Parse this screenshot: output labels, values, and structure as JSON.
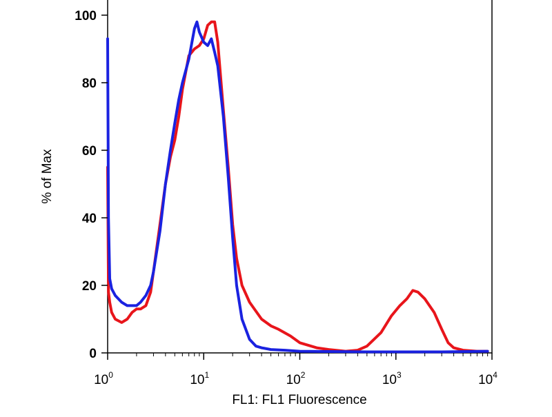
{
  "chart_data": {
    "type": "line",
    "title": "",
    "xlabel": "FL1: FL1 Fluorescence",
    "ylabel": "% of Max",
    "xscale": "log",
    "xlim": [
      1,
      10000
    ],
    "ylim": [
      0,
      100
    ],
    "grid": false,
    "legend": "none",
    "x_ticks": [
      {
        "base": "10",
        "exp": "0",
        "value": 1
      },
      {
        "base": "10",
        "exp": "1",
        "value": 10
      },
      {
        "base": "10",
        "exp": "2",
        "value": 100
      },
      {
        "base": "10",
        "exp": "3",
        "value": 1000
      },
      {
        "base": "10",
        "exp": "4",
        "value": 10000
      }
    ],
    "y_ticks": [
      "0",
      "20",
      "40",
      "60",
      "80",
      "100"
    ],
    "series": [
      {
        "color": "#e8151b",
        "x": [
          1,
          1.02,
          1.05,
          1.1,
          1.2,
          1.4,
          1.6,
          1.8,
          2.0,
          2.2,
          2.5,
          2.8,
          3.0,
          3.5,
          4.0,
          4.5,
          5.0,
          5.5,
          6.0,
          7.0,
          8.0,
          9.0,
          10.0,
          11.0,
          12.0,
          13.0,
          14.0,
          16.0,
          18.0,
          20.0,
          22.0,
          25.0,
          30.0,
          40.0,
          50.0,
          60.0,
          80.0,
          100.0,
          150.0,
          200.0,
          300.0,
          400.0,
          500.0,
          700.0,
          900.0,
          1100.0,
          1300.0,
          1500.0,
          1700.0,
          2000.0,
          2500.0,
          3000.0,
          3500.0,
          4000.0,
          5000.0,
          7000.0,
          9000.0
        ],
        "values": [
          55,
          18,
          15,
          12,
          10,
          9,
          10,
          12,
          13,
          13,
          14,
          18,
          24,
          38,
          50,
          58,
          63,
          70,
          78,
          88,
          90,
          91,
          93,
          97,
          98,
          98,
          92,
          72,
          55,
          38,
          28,
          20,
          15,
          10,
          8,
          7,
          5,
          3,
          1.5,
          1,
          0.5,
          0.8,
          2,
          6,
          11,
          14,
          16,
          18.5,
          18,
          16,
          12,
          7,
          3,
          1.5,
          0.8,
          0.5,
          0.5
        ]
      },
      {
        "color": "#1a22e0",
        "x": [
          1,
          1.02,
          1.05,
          1.1,
          1.2,
          1.4,
          1.6,
          1.8,
          2.0,
          2.2,
          2.5,
          2.8,
          3.0,
          3.5,
          4.0,
          4.5,
          5.0,
          5.5,
          6.0,
          7.0,
          8.0,
          8.5,
          9.0,
          10.0,
          11.0,
          12.0,
          13.0,
          14.0,
          16.0,
          18.0,
          20.0,
          22.0,
          25.0,
          30.0,
          35.0,
          40.0,
          50.0,
          70.0,
          100.0,
          200.0,
          500.0,
          1000.0,
          3000.0,
          9000.0
        ],
        "values": [
          93,
          40,
          22,
          19,
          17,
          15,
          14,
          14,
          14,
          15,
          17,
          20,
          24,
          36,
          50,
          60,
          68,
          75,
          80,
          87,
          96,
          98,
          95,
          92,
          91,
          93,
          89,
          85,
          70,
          52,
          34,
          20,
          10,
          4,
          2,
          1.5,
          1,
          0.8,
          0.5,
          0.4,
          0.3,
          0.3,
          0.3,
          0.5
        ]
      }
    ]
  }
}
